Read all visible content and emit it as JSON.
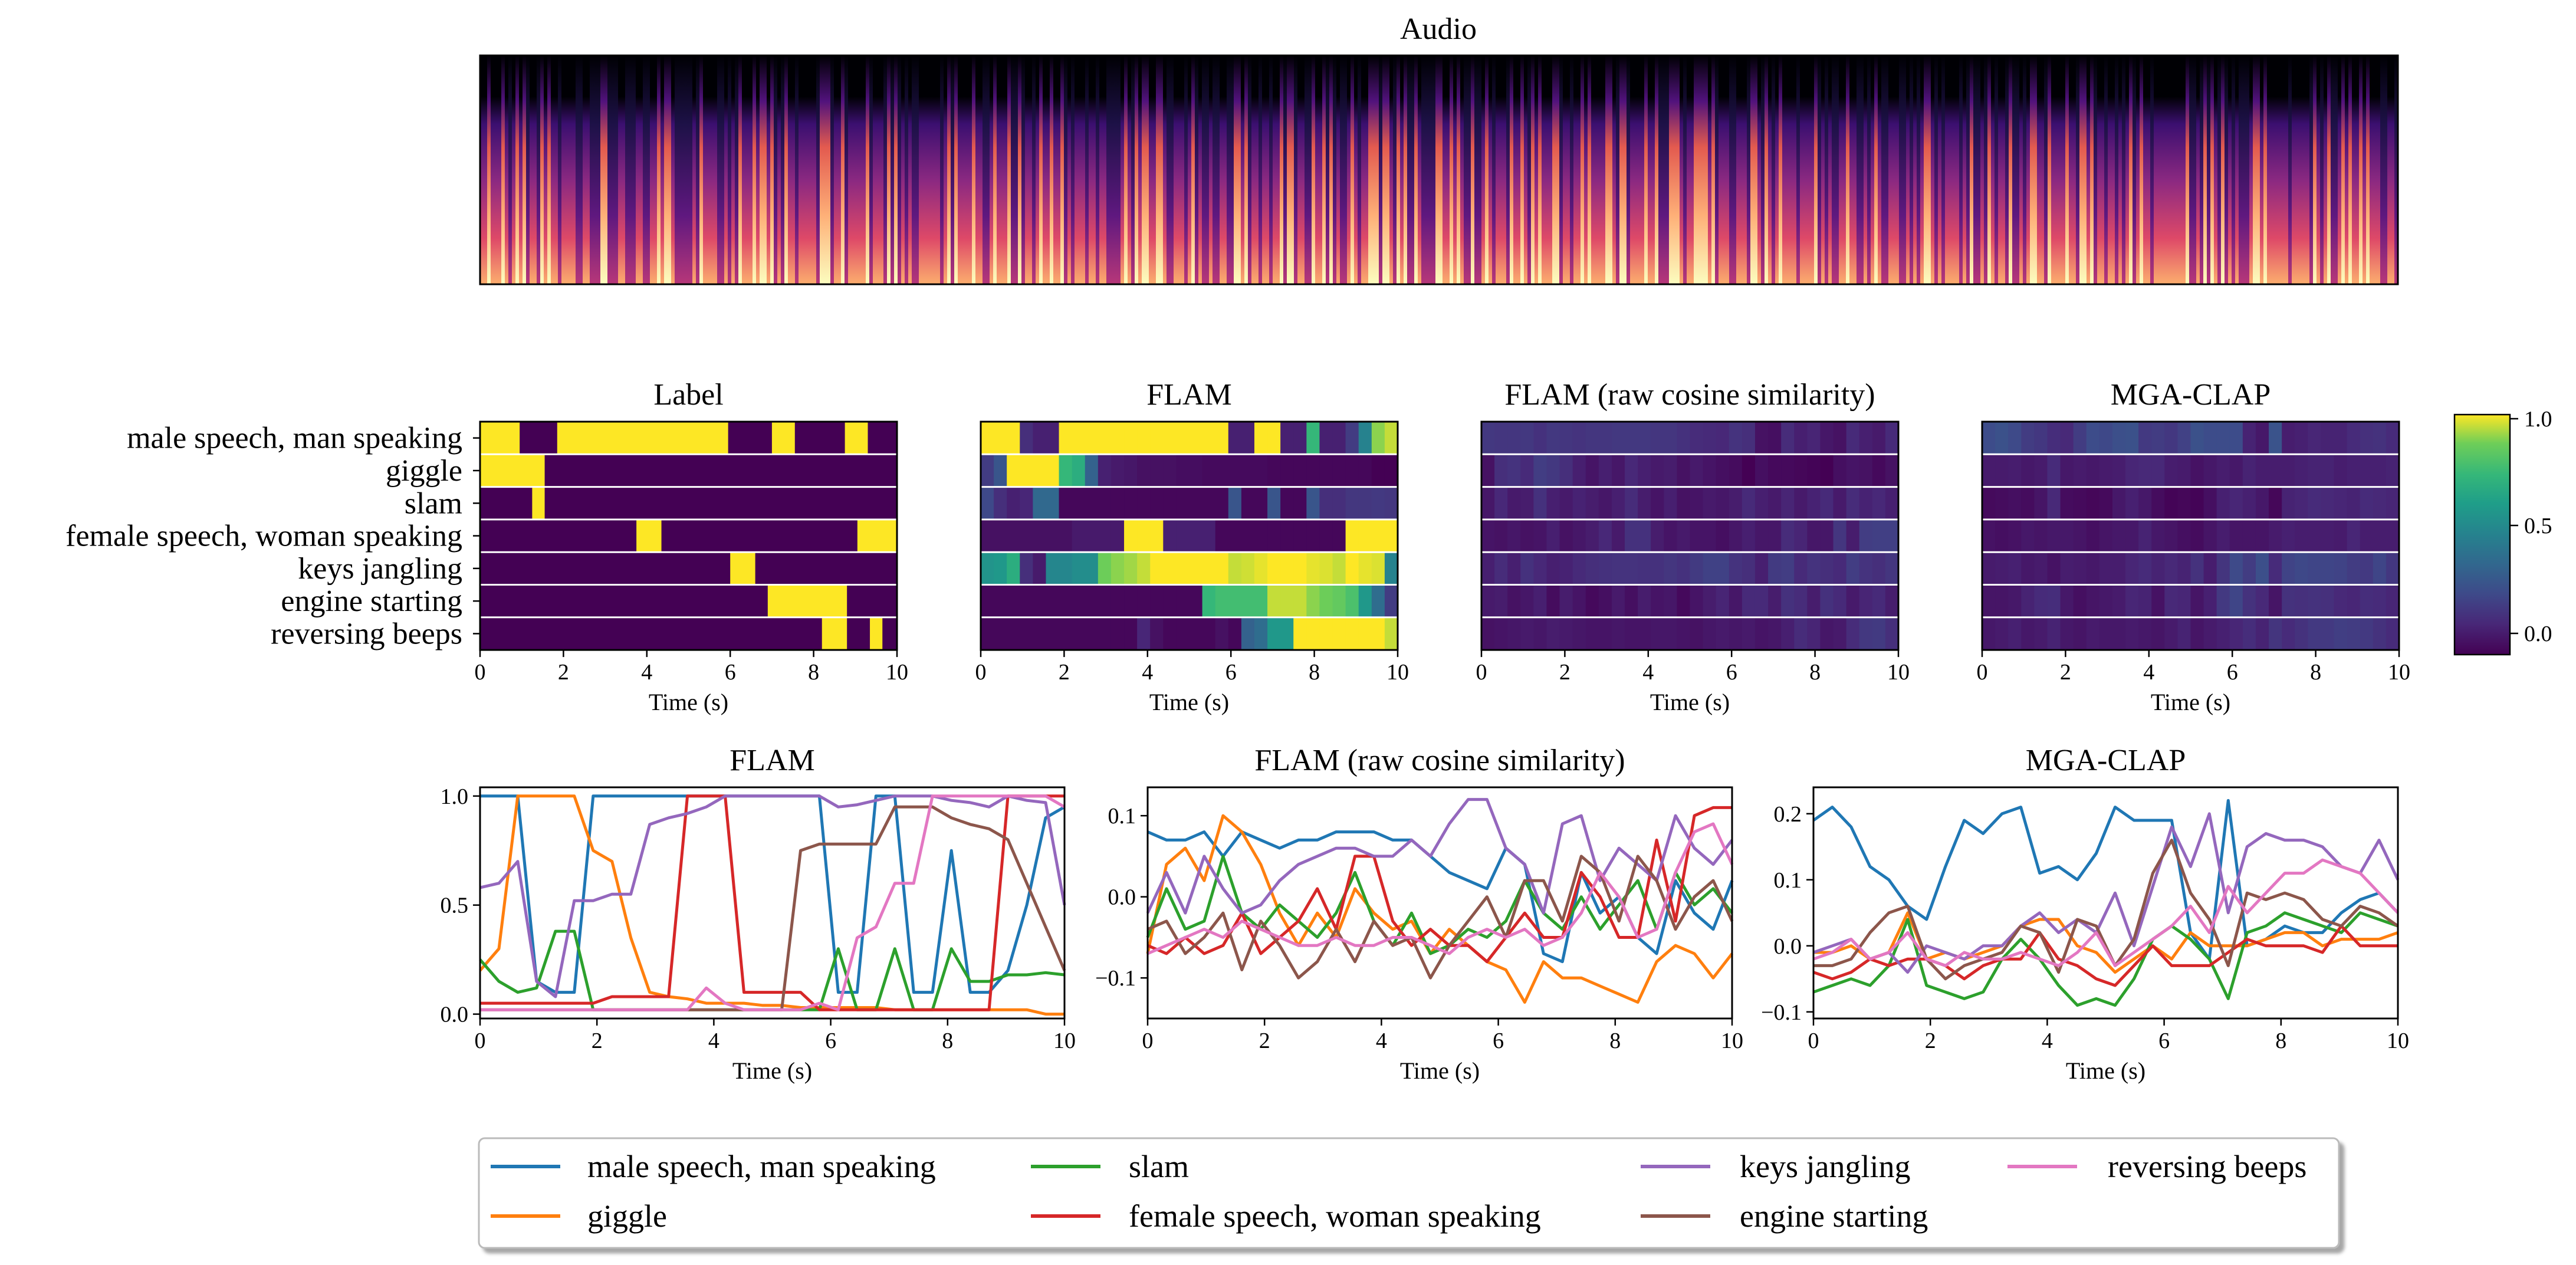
{
  "figure": {
    "label_names": [
      "male speech, man speaking",
      "giggle",
      "slam",
      "female speech, woman speaking",
      "keys jangling",
      "engine starting",
      "reversing beeps"
    ],
    "series_colors": [
      "#1f77b4",
      "#ff7f0e",
      "#2ca02c",
      "#d62728",
      "#9467bd",
      "#8c564b",
      "#e377c2"
    ],
    "xlabel": "Time (s)",
    "x_ticks": [
      "0",
      "2",
      "4",
      "6",
      "8",
      "10"
    ],
    "colorbar": {
      "ticks": [
        "1.0",
        "0.5",
        "0.0"
      ],
      "colormap": "viridis"
    }
  },
  "spectrogram": {
    "title": "Audio",
    "colormap": "magma"
  },
  "chart_data": [
    {
      "type": "heatmap",
      "title": "Label",
      "xlim": [
        0,
        10
      ],
      "frames": 32,
      "clim": [
        0,
        1
      ],
      "rows": [
        {
          "name": "male speech, man speaking",
          "on_intervals": [
            [
              0,
              0.95
            ],
            [
              1.85,
              5.95
            ],
            [
              7.0,
              7.55
            ],
            [
              8.75,
              9.3
            ]
          ]
        },
        {
          "name": "giggle",
          "on_intervals": [
            [
              0,
              1.55
            ]
          ]
        },
        {
          "name": "slam",
          "on_intervals": [
            [
              1.25,
              1.55
            ]
          ]
        },
        {
          "name": "female speech, woman speaking",
          "on_intervals": [
            [
              3.75,
              4.35
            ],
            [
              9.05,
              10
            ]
          ]
        },
        {
          "name": "keys jangling",
          "on_intervals": [
            [
              6.0,
              6.6
            ]
          ]
        },
        {
          "name": "engine starting",
          "on_intervals": [
            [
              6.9,
              8.8
            ]
          ]
        },
        {
          "name": "reversing beeps",
          "on_intervals": [
            [
              8.2,
              8.8
            ],
            [
              9.35,
              9.65
            ]
          ]
        }
      ]
    },
    {
      "type": "heatmap",
      "title": "FLAM",
      "xlim": [
        0,
        10
      ],
      "frames": 32,
      "clim": [
        0,
        1
      ],
      "rows": [
        {
          "name": "male speech, man speaking",
          "values": [
            1.0,
            1.0,
            1.0,
            0.15,
            0.1,
            0.1,
            1.0,
            1.0,
            1.0,
            1.0,
            1.0,
            1.0,
            1.0,
            1.0,
            1.0,
            1.0,
            1.0,
            1.0,
            1.0,
            0.1,
            0.1,
            1.0,
            1.0,
            0.1,
            0.1,
            0.75,
            0.1,
            0.1,
            0.2,
            0.5,
            0.9,
            0.95
          ]
        },
        {
          "name": "giggle",
          "values": [
            0.2,
            0.3,
            1.0,
            1.0,
            1.0,
            1.0,
            0.75,
            0.7,
            0.35,
            0.1,
            0.08,
            0.07,
            0.05,
            0.05,
            0.05,
            0.04,
            0.04,
            0.03,
            0.03,
            0.03,
            0.03,
            0.03,
            0.02,
            0.02,
            0.02,
            0.02,
            0.02,
            0.02,
            0.02,
            0.02,
            0.0,
            0.0
          ]
        },
        {
          "name": "slam",
          "values": [
            0.25,
            0.15,
            0.1,
            0.12,
            0.38,
            0.38,
            0.02,
            0.02,
            0.02,
            0.02,
            0.02,
            0.02,
            0.02,
            0.02,
            0.02,
            0.02,
            0.02,
            0.02,
            0.02,
            0.3,
            0.02,
            0.02,
            0.3,
            0.02,
            0.02,
            0.3,
            0.15,
            0.15,
            0.18,
            0.18,
            0.19,
            0.18
          ]
        },
        {
          "name": "female speech, woman speaking",
          "values": [
            0.05,
            0.05,
            0.05,
            0.05,
            0.05,
            0.05,
            0.05,
            0.08,
            0.08,
            0.08,
            0.08,
            1.0,
            1.0,
            1.0,
            0.1,
            0.1,
            0.1,
            0.1,
            0.02,
            0.02,
            0.02,
            0.02,
            0.02,
            0.02,
            0.02,
            0.02,
            0.02,
            0.02,
            1.0,
            1.0,
            1.0,
            1.0
          ]
        },
        {
          "name": "keys jangling",
          "values": [
            0.58,
            0.6,
            0.7,
            0.15,
            0.08,
            0.52,
            0.52,
            0.55,
            0.55,
            0.87,
            0.9,
            0.92,
            0.95,
            1.0,
            1.0,
            1.0,
            1.0,
            1.0,
            1.0,
            0.95,
            0.96,
            0.98,
            1.0,
            1.0,
            1.0,
            0.98,
            0.97,
            0.95,
            1.0,
            0.98,
            0.97,
            0.5
          ]
        },
        {
          "name": "engine starting",
          "values": [
            0.02,
            0.02,
            0.02,
            0.02,
            0.02,
            0.02,
            0.02,
            0.02,
            0.02,
            0.02,
            0.02,
            0.02,
            0.02,
            0.02,
            0.02,
            0.02,
            0.02,
            0.75,
            0.78,
            0.78,
            0.78,
            0.78,
            0.95,
            0.95,
            0.95,
            0.9,
            0.87,
            0.85,
            0.8,
            0.6,
            0.4,
            0.2
          ]
        },
        {
          "name": "reversing beeps",
          "values": [
            0.02,
            0.02,
            0.02,
            0.02,
            0.02,
            0.02,
            0.02,
            0.02,
            0.02,
            0.02,
            0.02,
            0.02,
            0.12,
            0.05,
            0.02,
            0.02,
            0.02,
            0.02,
            0.05,
            0.02,
            0.35,
            0.4,
            0.6,
            0.6,
            1.0,
            1.0,
            1.0,
            1.0,
            1.0,
            1.0,
            1.0,
            0.95
          ]
        }
      ]
    },
    {
      "type": "heatmap",
      "title": "FLAM (raw cosine similarity)",
      "xlim": [
        0,
        10
      ],
      "frames": 32,
      "clim": [
        -0.13,
        1
      ],
      "rows": [
        {
          "name": "male speech, man speaking",
          "values": [
            0.08,
            0.07,
            0.07,
            0.08,
            0.05,
            0.08,
            0.07,
            0.06,
            0.07,
            0.07,
            0.08,
            0.08,
            0.08,
            0.07,
            0.07,
            0.05,
            0.03,
            0.02,
            0.01,
            0.06,
            0.04,
            -0.07,
            -0.08,
            0.03,
            -0.02,
            0.0,
            -0.05,
            -0.07,
            0.02,
            -0.02,
            -0.04,
            0.02
          ]
        },
        {
          "name": "giggle",
          "values": [
            -0.07,
            0.04,
            0.06,
            0.02,
            0.1,
            0.08,
            0.04,
            -0.02,
            -0.06,
            -0.02,
            -0.05,
            0.01,
            -0.02,
            -0.04,
            -0.03,
            -0.07,
            -0.04,
            -0.06,
            -0.08,
            -0.09,
            -0.13,
            -0.08,
            -0.1,
            -0.1,
            -0.11,
            -0.12,
            -0.13,
            -0.08,
            -0.06,
            -0.07,
            -0.1,
            -0.07
          ]
        },
        {
          "name": "slam",
          "values": [
            -0.05,
            0.01,
            -0.04,
            -0.03,
            0.05,
            -0.02,
            -0.04,
            -0.01,
            -0.03,
            -0.05,
            -0.02,
            0.03,
            -0.03,
            -0.06,
            -0.02,
            -0.07,
            -0.06,
            -0.04,
            -0.05,
            -0.03,
            0.02,
            -0.02,
            -0.04,
            0.0,
            -0.04,
            -0.01,
            0.02,
            -0.04,
            0.03,
            -0.01,
            0.01,
            -0.02
          ]
        },
        {
          "name": "female speech, woman speaking",
          "values": [
            -0.06,
            -0.07,
            -0.05,
            -0.07,
            -0.06,
            -0.02,
            -0.07,
            -0.05,
            -0.03,
            0.01,
            -0.04,
            0.05,
            0.05,
            -0.03,
            -0.06,
            -0.04,
            -0.06,
            -0.06,
            -0.08,
            -0.05,
            -0.02,
            -0.05,
            -0.05,
            0.03,
            0.0,
            -0.05,
            -0.05,
            0.07,
            -0.03,
            0.1,
            0.11,
            0.11
          ]
        },
        {
          "name": "keys jangling",
          "values": [
            -0.02,
            0.03,
            -0.02,
            0.05,
            0.01,
            -0.02,
            -0.01,
            0.02,
            0.04,
            0.05,
            0.06,
            0.06,
            0.05,
            0.05,
            0.07,
            0.05,
            0.09,
            0.12,
            0.12,
            0.06,
            0.04,
            -0.02,
            0.09,
            0.1,
            0.02,
            0.06,
            0.04,
            0.02,
            0.1,
            0.06,
            0.04,
            0.07
          ]
        },
        {
          "name": "engine starting",
          "values": [
            -0.04,
            -0.03,
            -0.07,
            -0.05,
            -0.02,
            -0.09,
            -0.03,
            -0.06,
            -0.1,
            -0.08,
            -0.04,
            -0.08,
            -0.03,
            -0.06,
            -0.05,
            -0.1,
            -0.06,
            -0.03,
            0.0,
            -0.05,
            0.02,
            0.02,
            -0.03,
            0.05,
            0.03,
            -0.03,
            0.05,
            0.02,
            -0.04,
            0.0,
            0.02,
            -0.03
          ]
        },
        {
          "name": "reversing beeps",
          "values": [
            -0.07,
            -0.06,
            -0.05,
            -0.04,
            -0.05,
            -0.03,
            -0.04,
            -0.05,
            -0.06,
            -0.06,
            -0.05,
            -0.06,
            -0.06,
            -0.05,
            -0.05,
            -0.06,
            -0.07,
            -0.05,
            -0.04,
            -0.05,
            -0.04,
            -0.06,
            -0.05,
            -0.02,
            0.03,
            0.0,
            -0.05,
            -0.04,
            0.03,
            0.08,
            0.09,
            0.04
          ]
        }
      ]
    },
    {
      "type": "heatmap",
      "title": "MGA-CLAP",
      "xlim": [
        0,
        10
      ],
      "frames": 32,
      "clim": [
        -0.1,
        1
      ],
      "rows": [
        {
          "name": "male speech, man speaking",
          "values": [
            0.19,
            0.21,
            0.18,
            0.12,
            0.1,
            0.06,
            0.04,
            0.12,
            0.19,
            0.17,
            0.2,
            0.21,
            0.11,
            0.12,
            0.1,
            0.14,
            0.21,
            0.19,
            0.19,
            0.19,
            0.02,
            -0.02,
            0.22,
            0.0,
            0.01,
            0.03,
            0.02,
            0.02,
            0.05,
            0.07,
            0.08,
            0.05
          ]
        },
        {
          "name": "giggle",
          "values": [
            -0.01,
            -0.01,
            0.0,
            -0.02,
            -0.01,
            0.05,
            -0.02,
            -0.01,
            -0.02,
            -0.01,
            0.0,
            0.03,
            0.04,
            0.04,
            0.0,
            -0.01,
            -0.04,
            -0.02,
            0.0,
            -0.02,
            0.02,
            0.0,
            0.0,
            0.0,
            0.01,
            0.02,
            0.02,
            0.0,
            0.01,
            0.01,
            0.01,
            0.02
          ]
        },
        {
          "name": "slam",
          "values": [
            -0.07,
            -0.06,
            -0.05,
            -0.06,
            -0.03,
            0.04,
            -0.06,
            -0.07,
            -0.08,
            -0.07,
            -0.02,
            0.01,
            -0.02,
            -0.06,
            -0.09,
            -0.08,
            -0.09,
            -0.05,
            0.01,
            0.03,
            0.01,
            -0.02,
            -0.08,
            0.02,
            0.03,
            0.05,
            0.04,
            0.03,
            0.02,
            0.05,
            0.04,
            0.03
          ]
        },
        {
          "name": "female speech, woman speaking",
          "values": [
            -0.04,
            -0.05,
            -0.04,
            -0.02,
            -0.03,
            -0.02,
            -0.02,
            -0.03,
            -0.05,
            -0.03,
            -0.02,
            -0.02,
            0.02,
            -0.02,
            -0.03,
            -0.05,
            -0.06,
            -0.03,
            0.0,
            -0.03,
            -0.03,
            -0.03,
            -0.01,
            0.01,
            0.0,
            0.0,
            0.0,
            -0.01,
            0.03,
            0.0,
            0.0,
            0.0
          ]
        },
        {
          "name": "keys jangling",
          "values": [
            -0.01,
            0.0,
            0.01,
            -0.02,
            -0.01,
            -0.04,
            0.0,
            -0.01,
            -0.02,
            0.0,
            0.0,
            0.03,
            0.05,
            0.02,
            0.04,
            0.02,
            0.08,
            0.0,
            0.09,
            0.18,
            0.12,
            0.2,
            0.05,
            0.15,
            0.17,
            0.16,
            0.16,
            0.15,
            0.12,
            0.11,
            0.16,
            0.1
          ]
        },
        {
          "name": "engine starting",
          "values": [
            -0.03,
            -0.03,
            -0.02,
            0.02,
            0.05,
            0.06,
            -0.02,
            -0.05,
            -0.03,
            -0.02,
            -0.01,
            0.03,
            0.02,
            -0.04,
            0.04,
            0.03,
            -0.03,
            0.01,
            0.11,
            0.16,
            0.08,
            0.04,
            -0.03,
            0.08,
            0.07,
            0.08,
            0.07,
            0.04,
            0.03,
            0.06,
            0.05,
            0.03
          ]
        },
        {
          "name": "reversing beeps",
          "values": [
            -0.02,
            -0.01,
            0.01,
            -0.02,
            -0.01,
            0.02,
            -0.02,
            -0.03,
            -0.01,
            -0.02,
            -0.02,
            -0.01,
            -0.02,
            -0.03,
            -0.01,
            0.02,
            -0.03,
            -0.01,
            0.01,
            0.03,
            0.06,
            0.02,
            0.09,
            0.05,
            0.08,
            0.11,
            0.11,
            0.13,
            0.12,
            0.11,
            0.08,
            0.05
          ]
        }
      ]
    },
    {
      "type": "line",
      "title": "FLAM",
      "source": "FLAM",
      "xlabel": "Time (s)",
      "xlim": [
        0,
        10
      ],
      "ylim": [
        -0.02,
        1.04
      ],
      "y_ticks": [
        "0.0",
        "0.5",
        "1.0"
      ]
    },
    {
      "type": "line",
      "title": "FLAM (raw cosine similarity)",
      "source": "FLAM (raw cosine similarity)",
      "xlabel": "Time (s)",
      "xlim": [
        0,
        10
      ],
      "ylim": [
        -0.15,
        0.135
      ],
      "y_ticks": [
        "−0.1",
        "0.0",
        "0.1"
      ]
    },
    {
      "type": "line",
      "title": "MGA-CLAP",
      "source": "MGA-CLAP",
      "xlabel": "Time (s)",
      "xlim": [
        0,
        10
      ],
      "ylim": [
        -0.11,
        0.24
      ],
      "y_ticks": [
        "−0.1",
        "0.0",
        "0.1",
        "0.2"
      ]
    }
  ]
}
